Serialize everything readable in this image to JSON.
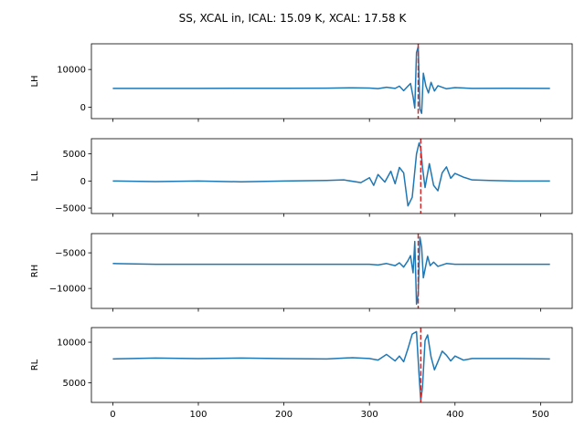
{
  "chart_data": {
    "type": "line",
    "suptitle": "SS, XCAL in, ICAL: 15.09 K, XCAL: 17.58 K",
    "xlim": [
      -25,
      537
    ],
    "xticks": [
      0,
      100,
      200,
      300,
      400,
      500
    ],
    "xticklabels": [
      "0",
      "100",
      "200",
      "300",
      "400",
      "500"
    ],
    "shared_x": true,
    "line_color": "#1f77b4",
    "marker_color": "#d62728",
    "panels": [
      {
        "ylabel": "LH",
        "ylim": [
          -3000,
          16800
        ],
        "yticks": [
          0,
          10000
        ],
        "yticklabels": [
          "0",
          "10000"
        ],
        "baseline": 5050,
        "marker_x": 357,
        "series": {
          "x": [
            0,
            50,
            100,
            150,
            200,
            250,
            280,
            300,
            310,
            320,
            330,
            335,
            340,
            345,
            348,
            351,
            353,
            355,
            357,
            359,
            361,
            363,
            366,
            369,
            372,
            376,
            380,
            390,
            400,
            420,
            460,
            511
          ],
          "y": [
            5000,
            5000,
            5000,
            5020,
            5030,
            5060,
            5150,
            5100,
            4950,
            5300,
            5000,
            5600,
            4400,
            5600,
            6300,
            2800,
            -200,
            14500,
            16000,
            -500,
            -1600,
            9000,
            5600,
            3800,
            6600,
            4300,
            5700,
            4900,
            5200,
            5000,
            5030,
            5000
          ]
        }
      },
      {
        "ylabel": "LL",
        "ylim": [
          -6000,
          7800
        ],
        "yticks": [
          -5000,
          0,
          5000
        ],
        "yticklabels": [
          "−5000",
          "0",
          "5000"
        ],
        "baseline": 0,
        "marker_x": 360,
        "series": {
          "x": [
            0,
            50,
            100,
            150,
            200,
            250,
            270,
            290,
            300,
            305,
            310,
            318,
            325,
            330,
            335,
            340,
            345,
            350,
            355,
            358,
            360,
            362,
            365,
            370,
            375,
            380,
            385,
            390,
            395,
            400,
            410,
            420,
            440,
            470,
            511
          ],
          "y": [
            0,
            -100,
            0,
            -150,
            0,
            100,
            200,
            -300,
            600,
            -800,
            1200,
            -200,
            1800,
            -500,
            2500,
            1500,
            -4600,
            -3000,
            5000,
            7000,
            6000,
            2500,
            -1200,
            3200,
            -800,
            -1800,
            1500,
            2600,
            500,
            1400,
            700,
            200,
            100,
            0,
            0
          ]
        }
      },
      {
        "ylabel": "RH",
        "ylim": [
          -12800,
          -2300
        ],
        "yticks": [
          -10000,
          -5000
        ],
        "yticklabels": [
          "−10000",
          "−5000"
        ],
        "baseline": -6600,
        "marker_x": 357,
        "series": {
          "x": [
            0,
            50,
            100,
            150,
            200,
            250,
            300,
            310,
            320,
            330,
            335,
            340,
            345,
            348,
            351,
            353,
            355,
            357,
            359,
            361,
            363,
            365,
            368,
            371,
            375,
            380,
            390,
            400,
            430,
            470,
            511
          ],
          "y": [
            -6500,
            -6600,
            -6600,
            -6600,
            -6600,
            -6600,
            -6600,
            -6700,
            -6500,
            -6800,
            -6400,
            -7000,
            -6100,
            -5400,
            -7800,
            -3400,
            -12200,
            -10800,
            -2800,
            -4200,
            -8500,
            -7300,
            -5500,
            -6800,
            -6300,
            -6900,
            -6500,
            -6600,
            -6600,
            -6600,
            -6600
          ]
        }
      },
      {
        "ylabel": "RL",
        "ylim": [
          2600,
          11800
        ],
        "yticks": [
          5000,
          10000
        ],
        "yticklabels": [
          "5000",
          "10000"
        ],
        "baseline": 8000,
        "marker_x": 360,
        "series": {
          "x": [
            0,
            50,
            100,
            150,
            200,
            250,
            280,
            300,
            310,
            320,
            330,
            335,
            340,
            345,
            350,
            355,
            358,
            360,
            362,
            365,
            368,
            372,
            376,
            380,
            385,
            390,
            395,
            400,
            410,
            420,
            440,
            470,
            511
          ],
          "y": [
            7950,
            8050,
            7980,
            8050,
            7980,
            7950,
            8100,
            8000,
            7800,
            8500,
            7700,
            8300,
            7600,
            9200,
            11000,
            11300,
            6000,
            2800,
            4500,
            10200,
            10900,
            8200,
            6600,
            7600,
            8900,
            8400,
            7700,
            8300,
            7800,
            8000,
            8000,
            8000,
            7950
          ]
        }
      }
    ]
  }
}
